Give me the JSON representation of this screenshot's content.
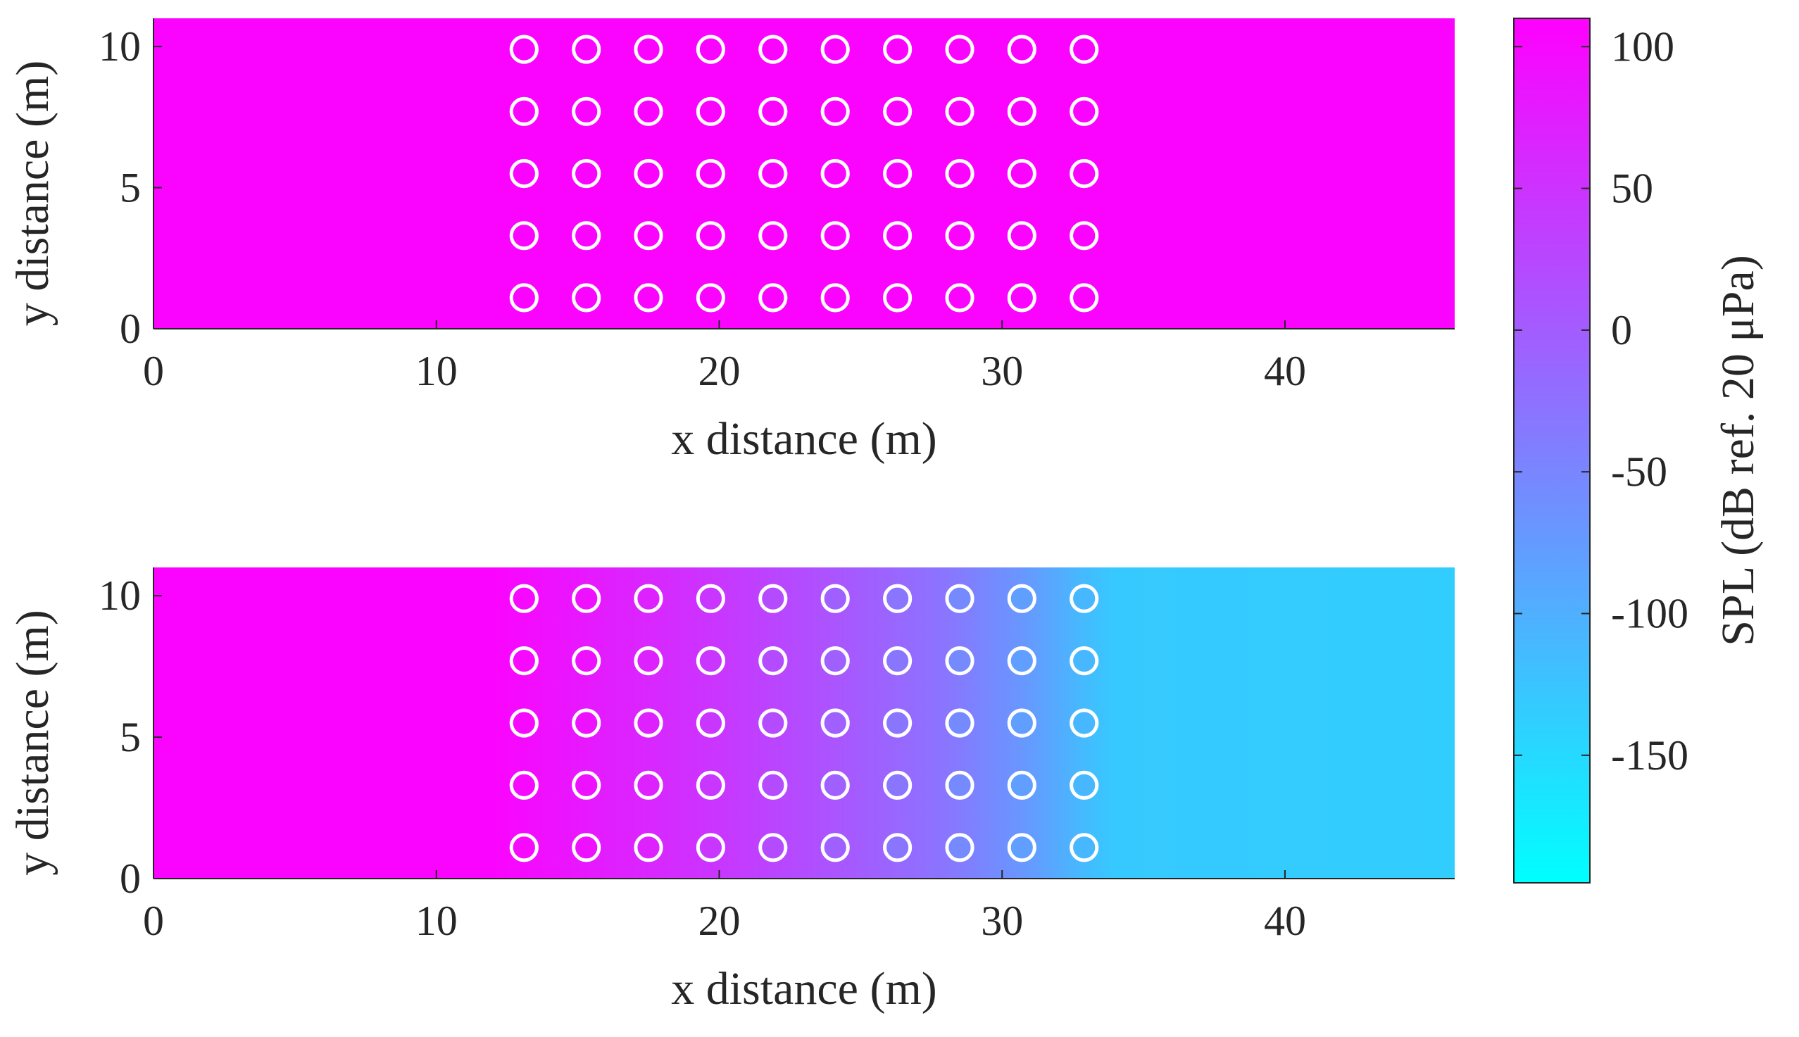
{
  "chart_data": [
    {
      "type": "heatmap",
      "panel": "top",
      "xlabel": "x distance (m)",
      "ylabel": "y distance (m)",
      "xlim": [
        0,
        46
      ],
      "ylim": [
        0,
        11
      ],
      "x_ticks": [
        0,
        10,
        20,
        30,
        40
      ],
      "y_ticks": [
        0,
        5,
        10
      ],
      "field": {
        "description_values": "uniform SPL across domain",
        "x": [
          0,
          12,
          16,
          20,
          24,
          28,
          32,
          34,
          46
        ],
        "spl": [
          105,
          105,
          105,
          105,
          105,
          105,
          105,
          105,
          105
        ]
      },
      "scatterers": {
        "x": [
          13.1,
          15.3,
          17.5,
          19.7,
          21.9,
          24.1,
          26.3,
          28.5,
          30.7,
          32.9
        ],
        "y": [
          1.1,
          3.3,
          5.5,
          7.7,
          9.9
        ],
        "radius": 0.5,
        "color": "#ffffff"
      }
    },
    {
      "type": "heatmap",
      "panel": "bottom",
      "xlabel": "x distance (m)",
      "ylabel": "y distance (m)",
      "xlim": [
        0,
        46
      ],
      "ylim": [
        0,
        11
      ],
      "x_ticks": [
        0,
        10,
        20,
        30,
        40
      ],
      "y_ticks": [
        0,
        5,
        10
      ],
      "field": {
        "x": [
          0,
          12,
          13,
          16,
          20,
          24,
          28,
          31,
          33,
          34,
          46
        ],
        "spl": [
          105,
          105,
          98,
          75,
          45,
          10,
          -30,
          -75,
          -115,
          -130,
          -135
        ]
      },
      "scatterers": {
        "x": [
          13.1,
          15.3,
          17.5,
          19.7,
          21.9,
          24.1,
          26.3,
          28.5,
          30.7,
          32.9
        ],
        "y": [
          1.1,
          3.3,
          5.5,
          7.7,
          9.9
        ],
        "radius": 0.5,
        "color": "#ffffff",
        "fill_spl": [
          100,
          90,
          70,
          45,
          20,
          -5,
          -30,
          -55,
          -80,
          -110
        ]
      }
    }
  ],
  "colorbar": {
    "label": "SPL (dB ref. 20 μPa)",
    "range": [
      -195,
      110
    ],
    "ticks": [
      100,
      50,
      0,
      -50,
      -100,
      -150
    ],
    "colormap": {
      "low": "#00ffff",
      "high": "#ff00ff"
    }
  }
}
